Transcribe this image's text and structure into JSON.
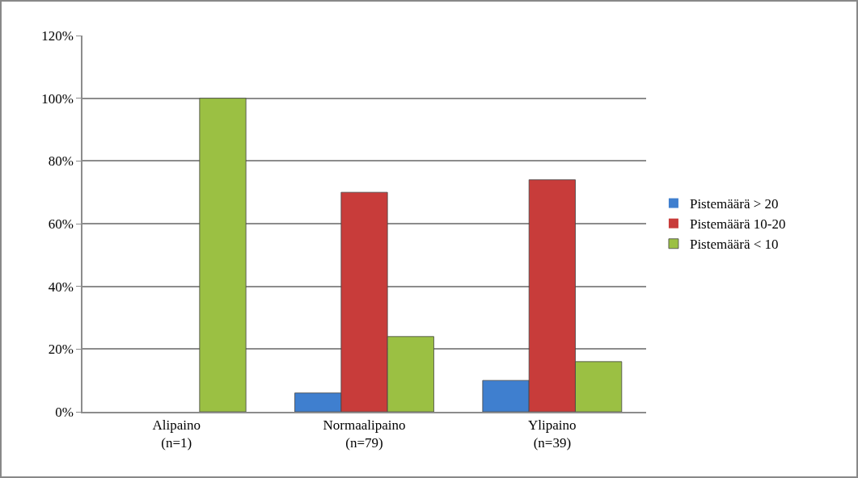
{
  "chart_data": {
    "type": "bar",
    "categories": [
      "Alipaino\n(n=1)",
      "Normaalipaino\n(n=79)",
      "Ylipaino\n(n=39)"
    ],
    "series": [
      {
        "name": "Pistemäärä > 20",
        "color": "#3f7fcf",
        "values": [
          0,
          6,
          10
        ]
      },
      {
        "name": "Pistemäärä 10-20",
        "color": "#c83c3a",
        "values": [
          0,
          70,
          74
        ]
      },
      {
        "name": "Pistemäärä < 10",
        "color": "#9bc043",
        "values": [
          100,
          24,
          16
        ]
      }
    ],
    "ylim": [
      0,
      120
    ],
    "yticks": [
      {
        "value": 0,
        "label": "0%"
      },
      {
        "value": 20,
        "label": "20%"
      },
      {
        "value": 40,
        "label": "40%"
      },
      {
        "value": 60,
        "label": "60%"
      },
      {
        "value": 80,
        "label": "80%"
      },
      {
        "value": 100,
        "label": "100%"
      },
      {
        "value": 120,
        "label": "120%"
      }
    ],
    "grid": "y",
    "legend": "right"
  }
}
